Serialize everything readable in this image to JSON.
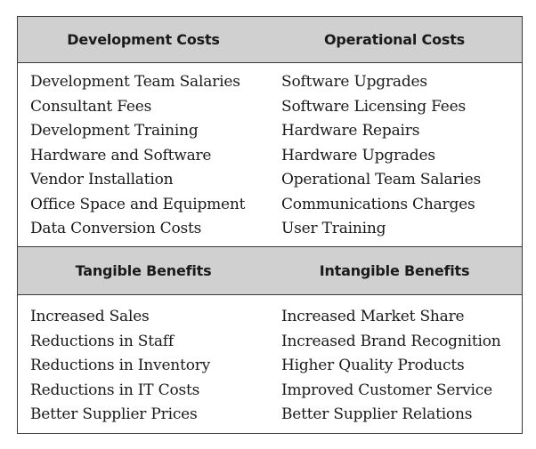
{
  "sections": [
    {
      "left_header": "Development Costs",
      "right_header": "Operational Costs",
      "left_items": [
        "Development Team Salaries",
        "Consultant Fees",
        "Development Training",
        "Hardware and Software",
        "Vendor Installation",
        "Office Space and Equipment",
        "Data Conversion Costs"
      ],
      "right_items": [
        "Software Upgrades",
        "Software Licensing Fees",
        "Hardware Repairs",
        "Hardware Upgrades",
        "Operational Team Salaries",
        "Communications Charges",
        "User Training"
      ]
    },
    {
      "left_header": "Tangible Benefits",
      "right_header": "Intangible Benefits",
      "left_items": [
        "Increased Sales",
        "Reductions in Staff",
        "Reductions in Inventory",
        "Reductions in IT Costs",
        "Better Supplier Prices"
      ],
      "right_items": [
        "Increased Market Share",
        "Increased Brand Recognition",
        "Higher Quality Products",
        "Improved Customer Service",
        "Better Supplier Relations"
      ]
    }
  ],
  "colors": {
    "header_background": "#d0d0d0",
    "border": "#3a3a3a",
    "text": "#1a1a1a"
  }
}
